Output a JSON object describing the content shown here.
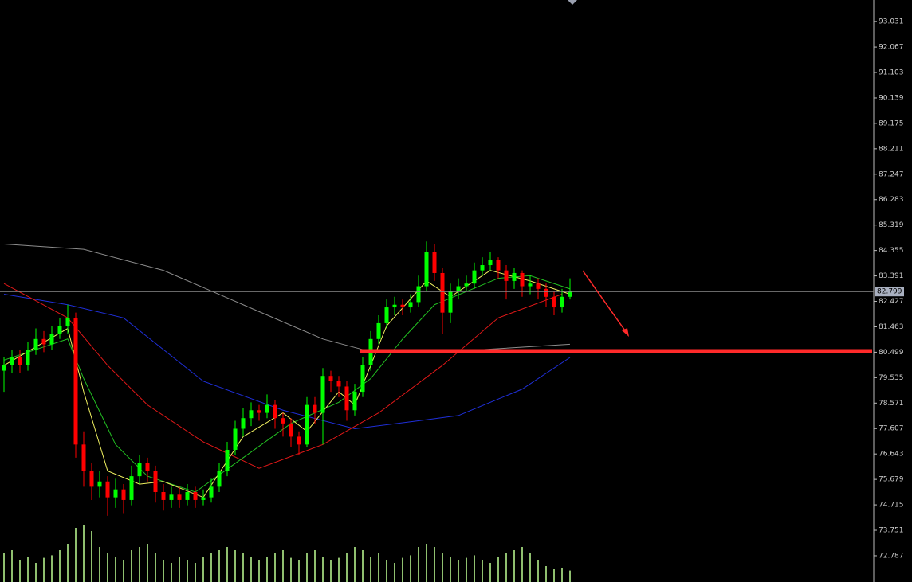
{
  "chart_data": {
    "type": "candlestick",
    "ylim": [
      71.79,
      93.85
    ],
    "yticks": [
      93.031,
      92.067,
      91.103,
      90.139,
      89.175,
      88.211,
      87.247,
      86.283,
      85.319,
      84.355,
      83.391,
      82.427,
      81.463,
      80.499,
      79.535,
      78.571,
      77.607,
      76.643,
      75.679,
      74.715,
      73.751,
      72.787
    ],
    "last_price": 82.799,
    "up_color": "#00ff00",
    "down_color": "#ff0000",
    "candles": {
      "open": [
        79.8,
        80.0,
        80.3,
        80.0,
        80.6,
        81.0,
        80.8,
        81.2,
        81.5,
        81.8,
        77.0,
        76.0,
        75.4,
        75.6,
        75.0,
        75.3,
        74.9,
        75.8,
        76.3,
        76.0,
        75.2,
        74.9,
        75.1,
        74.9,
        75.2,
        74.9,
        75.0,
        75.4,
        76.0,
        76.8,
        77.6,
        78.0,
        78.3,
        78.2,
        78.5,
        78.0,
        77.8,
        77.3,
        77.0,
        78.5,
        78.2,
        79.6,
        79.4,
        79.2,
        78.3,
        79.0,
        80.0,
        81.0,
        81.6,
        82.2,
        82.3,
        82.2,
        82.4,
        83.0,
        84.3,
        83.5,
        82.0,
        82.8,
        83.0,
        83.1,
        83.6,
        83.8,
        84.0,
        83.6,
        83.2,
        83.5,
        83.0,
        83.1,
        82.9,
        82.6,
        82.2,
        82.6
      ],
      "high": [
        80.3,
        80.6,
        80.6,
        80.9,
        81.4,
        81.3,
        81.5,
        81.8,
        82.3,
        82.0,
        77.5,
        76.3,
        76.0,
        75.8,
        75.7,
        75.5,
        76.2,
        76.6,
        76.5,
        76.2,
        75.5,
        75.4,
        75.4,
        75.5,
        75.4,
        75.3,
        75.7,
        76.3,
        77.1,
        77.9,
        78.4,
        78.6,
        78.5,
        78.9,
        78.7,
        78.2,
        78.0,
        77.5,
        78.8,
        78.8,
        79.9,
        79.8,
        79.6,
        79.4,
        79.3,
        80.3,
        81.3,
        81.9,
        82.5,
        82.6,
        82.5,
        82.7,
        83.4,
        84.7,
        84.6,
        83.7,
        83.1,
        83.3,
        83.4,
        83.9,
        84.1,
        84.3,
        84.1,
        83.8,
        83.7,
        83.6,
        83.4,
        83.3,
        83.1,
        82.8,
        82.9,
        83.3
      ],
      "low": [
        79.0,
        79.7,
        79.7,
        79.8,
        80.4,
        80.5,
        80.6,
        81.0,
        81.2,
        76.5,
        75.4,
        74.9,
        75.0,
        74.3,
        74.6,
        74.4,
        74.7,
        75.5,
        75.6,
        74.8,
        74.5,
        74.6,
        74.6,
        74.7,
        74.6,
        74.7,
        74.8,
        75.2,
        75.8,
        76.6,
        77.3,
        77.7,
        77.9,
        78.0,
        77.6,
        77.3,
        76.9,
        76.6,
        76.9,
        77.8,
        77.0,
        79.0,
        78.8,
        77.9,
        78.1,
        78.8,
        79.8,
        80.8,
        81.4,
        81.9,
        81.9,
        82.0,
        82.2,
        82.8,
        83.2,
        81.2,
        81.6,
        82.5,
        82.8,
        82.9,
        83.4,
        83.6,
        83.3,
        82.5,
        82.9,
        82.6,
        82.7,
        82.5,
        82.2,
        81.9,
        82.0,
        82.5
      ],
      "close": [
        80.0,
        80.3,
        80.0,
        80.6,
        81.0,
        80.8,
        81.2,
        81.5,
        81.8,
        77.0,
        76.0,
        75.4,
        75.6,
        75.0,
        75.3,
        74.9,
        75.8,
        76.3,
        76.0,
        75.2,
        74.9,
        75.1,
        74.9,
        75.2,
        74.9,
        75.0,
        75.4,
        76.0,
        76.8,
        77.6,
        78.0,
        78.3,
        78.2,
        78.5,
        78.0,
        77.8,
        77.3,
        77.0,
        78.5,
        78.2,
        79.6,
        79.4,
        79.2,
        78.3,
        79.0,
        80.0,
        81.0,
        81.6,
        82.2,
        82.3,
        82.2,
        82.4,
        83.0,
        84.3,
        83.5,
        82.0,
        82.8,
        83.0,
        83.1,
        83.6,
        83.8,
        84.0,
        83.6,
        83.2,
        83.5,
        83.0,
        83.1,
        82.9,
        82.6,
        82.2,
        82.6,
        82.8
      ]
    },
    "lines": [
      {
        "color": "#8c8c8c",
        "x": [
          0,
          10,
          20,
          30,
          40,
          45,
          50,
          60,
          71
        ],
        "values": [
          84.6,
          84.4,
          83.6,
          82.3,
          81.0,
          80.6,
          80.5,
          80.6,
          80.8
        ]
      },
      {
        "color": "#1f2fd8",
        "x": [
          0,
          8,
          15,
          25,
          35,
          44,
          52,
          57,
          65,
          71
        ],
        "values": [
          82.7,
          82.3,
          81.8,
          79.4,
          78.3,
          77.6,
          77.9,
          78.1,
          79.1,
          80.3
        ]
      },
      {
        "color": "#e01818",
        "x": [
          0,
          8,
          13,
          18,
          25,
          32,
          40,
          47,
          55,
          62,
          70
        ],
        "values": [
          83.1,
          81.8,
          80.0,
          78.5,
          77.1,
          76.1,
          77.0,
          78.2,
          80.0,
          81.8,
          82.7
        ]
      },
      {
        "color": "#22c022",
        "x": [
          0,
          8,
          10,
          14,
          18,
          24,
          30,
          36,
          42,
          46,
          50,
          54,
          58,
          62,
          66,
          71
        ],
        "values": [
          80.2,
          81.0,
          79.5,
          77.0,
          75.8,
          75.2,
          76.5,
          77.8,
          78.6,
          79.5,
          81.0,
          82.3,
          82.8,
          83.3,
          83.4,
          82.9
        ]
      },
      {
        "color": "#f0f060",
        "x": [
          0,
          8,
          10,
          13,
          17,
          20,
          25,
          30,
          35,
          38,
          42,
          44,
          48,
          53,
          56,
          61,
          66,
          71
        ],
        "values": [
          80.0,
          81.4,
          79.0,
          76.0,
          75.5,
          75.6,
          75.0,
          77.3,
          78.2,
          77.5,
          79.0,
          78.5,
          81.5,
          83.2,
          82.6,
          83.6,
          83.2,
          82.7
        ]
      }
    ],
    "volume_color": "#8fbf6f",
    "volume_lim": [
      0,
      100
    ],
    "volume": [
      45,
      50,
      35,
      40,
      30,
      38,
      42,
      50,
      60,
      85,
      90,
      80,
      55,
      45,
      40,
      35,
      50,
      55,
      60,
      45,
      35,
      30,
      40,
      35,
      30,
      40,
      45,
      50,
      55,
      50,
      45,
      40,
      35,
      40,
      45,
      50,
      38,
      35,
      45,
      50,
      40,
      35,
      38,
      45,
      55,
      50,
      40,
      45,
      35,
      30,
      38,
      42,
      55,
      60,
      55,
      45,
      40,
      35,
      38,
      42,
      35,
      30,
      40,
      45,
      50,
      55,
      45,
      35,
      25,
      20,
      22,
      18
    ]
  }
}
